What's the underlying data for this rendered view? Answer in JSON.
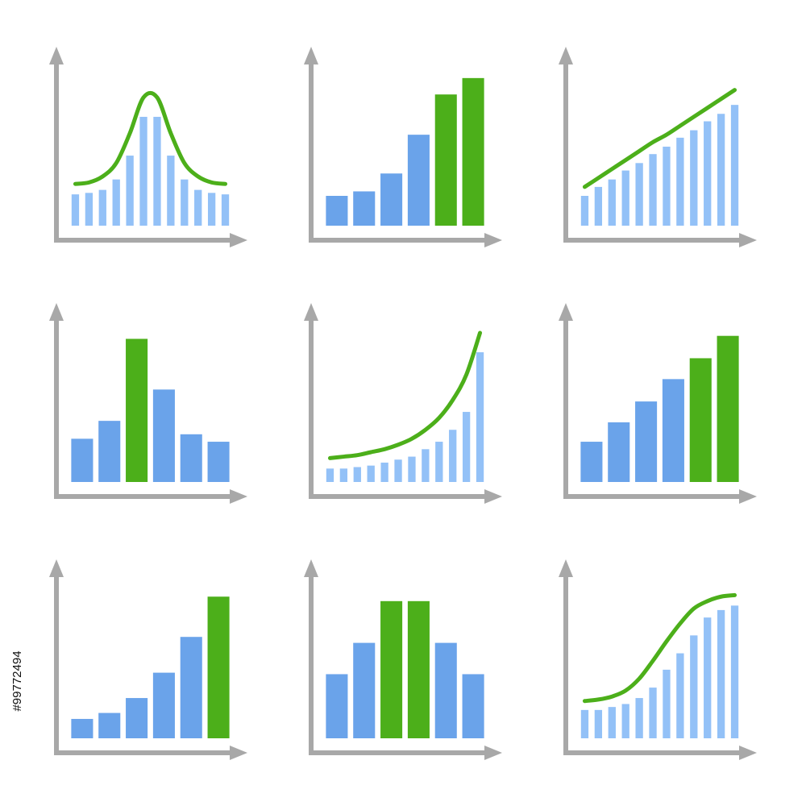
{
  "stock_id": "#99772494",
  "chart_data": [
    {
      "type": "combo",
      "ylim": [
        0,
        100
      ],
      "values": [
        21,
        22,
        24,
        31,
        47,
        73,
        73,
        47,
        31,
        24,
        22,
        21
      ],
      "colors": [
        "#93c1f7",
        "#93c1f7",
        "#93c1f7",
        "#93c1f7",
        "#93c1f7",
        "#93c1f7",
        "#93c1f7",
        "#93c1f7",
        "#93c1f7",
        "#93c1f7",
        "#93c1f7",
        "#93c1f7"
      ],
      "line": {
        "color": "#4caf1a",
        "values": [
          28,
          29,
          33,
          42,
          62,
          86,
          86,
          62,
          42,
          33,
          29,
          28
        ]
      }
    },
    {
      "type": "bar",
      "ylim": [
        0,
        100
      ],
      "values": [
        20,
        23,
        35,
        61,
        88,
        99
      ],
      "colors": [
        "#6aa3ea",
        "#6aa3ea",
        "#6aa3ea",
        "#6aa3ea",
        "#4caf1a",
        "#4caf1a"
      ]
    },
    {
      "type": "combo",
      "ylim": [
        0,
        100
      ],
      "values": [
        20,
        26,
        31,
        37,
        42,
        48,
        53,
        59,
        64,
        70,
        75,
        81
      ],
      "colors": [
        "#93c1f7",
        "#93c1f7",
        "#93c1f7",
        "#93c1f7",
        "#93c1f7",
        "#93c1f7",
        "#93c1f7",
        "#93c1f7",
        "#93c1f7",
        "#93c1f7",
        "#93c1f7",
        "#93c1f7"
      ],
      "line": {
        "color": "#4caf1a",
        "values": [
          26,
          32,
          38,
          44,
          50,
          56,
          61,
          67,
          73,
          79,
          85,
          91
        ]
      }
    },
    {
      "type": "bar",
      "ylim": [
        0,
        100
      ],
      "values": [
        29,
        41,
        96,
        62,
        32,
        27
      ],
      "colors": [
        "#6aa3ea",
        "#6aa3ea",
        "#4caf1a",
        "#6aa3ea",
        "#6aa3ea",
        "#6aa3ea"
      ]
    },
    {
      "type": "combo",
      "ylim": [
        0,
        100
      ],
      "values": [
        9,
        9,
        10,
        11,
        13,
        15,
        17,
        22,
        27,
        35,
        47,
        87
      ],
      "colors": [
        "#93c1f7",
        "#93c1f7",
        "#93c1f7",
        "#93c1f7",
        "#93c1f7",
        "#93c1f7",
        "#93c1f7",
        "#93c1f7",
        "#93c1f7",
        "#93c1f7",
        "#93c1f7",
        "#93c1f7"
      ],
      "line": {
        "color": "#4caf1a",
        "values": [
          16,
          17,
          18,
          20,
          22,
          25,
          29,
          35,
          43,
          55,
          72,
          100
        ]
      }
    },
    {
      "type": "bar",
      "ylim": [
        0,
        100
      ],
      "values": [
        27,
        40,
        54,
        69,
        83,
        98
      ],
      "colors": [
        "#6aa3ea",
        "#6aa3ea",
        "#6aa3ea",
        "#6aa3ea",
        "#4caf1a",
        "#4caf1a"
      ]
    },
    {
      "type": "bar",
      "ylim": [
        0,
        100
      ],
      "values": [
        13,
        17,
        27,
        44,
        68,
        95
      ],
      "colors": [
        "#6aa3ea",
        "#6aa3ea",
        "#6aa3ea",
        "#6aa3ea",
        "#6aa3ea",
        "#4caf1a"
      ]
    },
    {
      "type": "bar",
      "ylim": [
        0,
        100
      ],
      "values": [
        43,
        64,
        92,
        92,
        64,
        43
      ],
      "colors": [
        "#6aa3ea",
        "#6aa3ea",
        "#4caf1a",
        "#4caf1a",
        "#6aa3ea",
        "#6aa3ea"
      ]
    },
    {
      "type": "combo",
      "ylim": [
        0,
        100
      ],
      "values": [
        19,
        19,
        21,
        23,
        27,
        34,
        46,
        57,
        69,
        81,
        86,
        89
      ],
      "colors": [
        "#93c1f7",
        "#93c1f7",
        "#93c1f7",
        "#93c1f7",
        "#93c1f7",
        "#93c1f7",
        "#93c1f7",
        "#93c1f7",
        "#93c1f7",
        "#93c1f7",
        "#93c1f7",
        "#93c1f7"
      ],
      "line": {
        "color": "#4caf1a",
        "values": [
          25,
          26,
          28,
          32,
          40,
          52,
          65,
          77,
          87,
          92,
          95,
          96
        ]
      }
    }
  ]
}
